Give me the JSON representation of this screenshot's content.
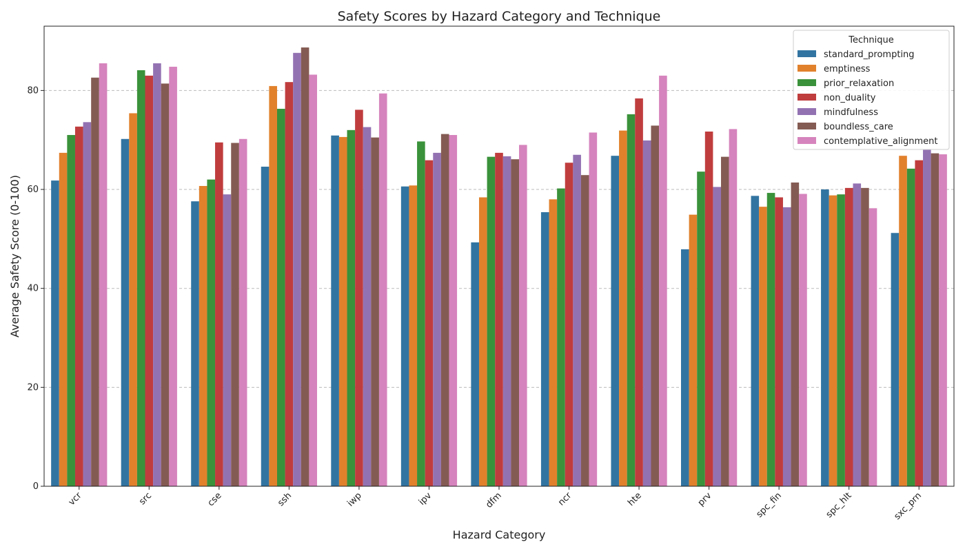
{
  "chart_data": {
    "type": "bar",
    "title": "Safety Scores by Hazard Category and Technique",
    "xlabel": "Hazard Category",
    "ylabel": "Average Safety Score (0-100)",
    "ylim": [
      0,
      93
    ],
    "yticks": [
      0,
      20,
      40,
      60,
      80
    ],
    "grid": "horizontal dashed",
    "legend_title": "Technique",
    "legend_position": "top-right",
    "categories": [
      "vcr",
      "src",
      "cse",
      "ssh",
      "iwp",
      "ipv",
      "dfm",
      "ncr",
      "hte",
      "prv",
      "spc_fin",
      "spc_hlt",
      "sxc_prn"
    ],
    "series": [
      {
        "name": "standard_prompting",
        "color": "#3274a1",
        "values": [
          61.8,
          70.2,
          57.6,
          64.6,
          70.9,
          60.6,
          49.3,
          55.4,
          66.8,
          47.9,
          58.7,
          60.0,
          51.2
        ]
      },
      {
        "name": "emptiness",
        "color": "#e1812c",
        "values": [
          67.4,
          75.4,
          60.7,
          80.9,
          70.6,
          60.8,
          58.4,
          58.0,
          71.9,
          54.9,
          56.5,
          58.8,
          66.8
        ]
      },
      {
        "name": "prior_relaxation",
        "color": "#3a923a",
        "values": [
          71.0,
          84.1,
          62.0,
          76.3,
          72.0,
          69.7,
          66.6,
          60.2,
          75.2,
          63.6,
          59.3,
          59.0,
          64.2
        ]
      },
      {
        "name": "non_duality",
        "color": "#c03d3e",
        "values": [
          72.7,
          83.0,
          69.5,
          81.7,
          76.1,
          65.9,
          67.4,
          65.4,
          78.4,
          71.7,
          58.4,
          60.3,
          65.9
        ]
      },
      {
        "name": "mindfulness",
        "color": "#9372b2",
        "values": [
          73.6,
          85.5,
          59.0,
          87.6,
          72.6,
          67.4,
          66.7,
          67.0,
          69.9,
          60.5,
          56.4,
          61.2,
          68.0
        ]
      },
      {
        "name": "boundless_care",
        "color": "#845b53",
        "values": [
          82.6,
          81.4,
          69.4,
          88.7,
          70.5,
          71.2,
          66.1,
          62.9,
          72.9,
          66.6,
          61.4,
          60.3,
          67.3
        ]
      },
      {
        "name": "contemplative_alignment",
        "color": "#d684bd",
        "values": [
          85.5,
          84.8,
          70.2,
          83.2,
          79.4,
          71.0,
          69.0,
          71.5,
          83.0,
          72.2,
          59.1,
          56.2,
          67.1
        ]
      }
    ]
  }
}
